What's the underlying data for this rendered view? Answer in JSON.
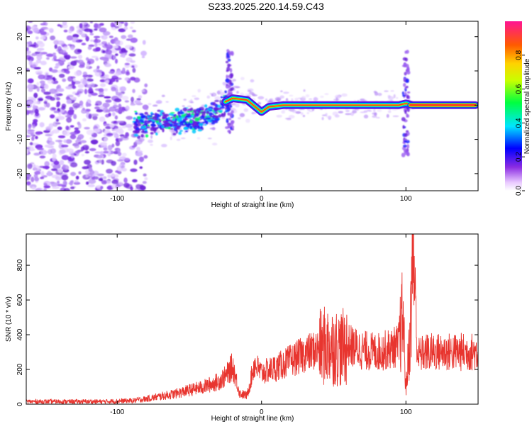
{
  "title": "S233.2025.220.14.59.C43",
  "chart_data": [
    {
      "type": "heatmap",
      "xlabel": "Height of straight line (km)",
      "ylabel": "Frequency (Hz)",
      "xlim": [
        -163,
        150
      ],
      "ylim": [
        -25,
        24.5
      ],
      "xticks": [
        -100,
        0,
        100
      ],
      "yticks": [
        -20,
        -10,
        0,
        10,
        20
      ],
      "colorbar": {
        "label": "Normalized spectral amplitude",
        "range": [
          0,
          1
        ],
        "ticks": [
          "0.0",
          "0.2",
          "0.4",
          "0.6",
          "0.8"
        ],
        "tick_values": [
          0.0,
          0.2,
          0.4,
          0.6,
          0.8
        ],
        "colormap": "rainbow"
      },
      "noise_region_x": [
        -163,
        -80
      ],
      "dispersion_line": [
        [
          -88,
          -5.5
        ],
        [
          -60,
          -5.0
        ],
        [
          -40,
          -3.5
        ],
        [
          -30,
          -2.0
        ],
        [
          -25,
          1.0
        ],
        [
          -20,
          2.0
        ],
        [
          -10,
          1.5
        ],
        [
          0,
          -2.0
        ],
        [
          5,
          -0.5
        ],
        [
          15,
          0.0
        ],
        [
          40,
          0.0
        ],
        [
          60,
          0.0
        ],
        [
          80,
          0.0
        ],
        [
          95,
          0.0
        ],
        [
          100,
          0.5
        ],
        [
          105,
          0.0
        ],
        [
          148,
          0.0
        ]
      ],
      "spikes": [
        {
          "x": -22,
          "f_range": [
            -8,
            16
          ]
        },
        {
          "x": 100,
          "f_range": [
            -15,
            16
          ]
        }
      ]
    },
    {
      "type": "line",
      "xlabel": "Height of straight line (km)",
      "ylabel": "SNR (10 * v/v)",
      "xlim": [
        -163,
        150
      ],
      "ylim": [
        0,
        980
      ],
      "xticks": [
        -100,
        0,
        100
      ],
      "yticks": [
        0,
        200,
        400,
        600,
        800
      ],
      "color": "#e8352f",
      "envelope": {
        "x": [
          -163,
          -140,
          -110,
          -90,
          -80,
          -60,
          -40,
          -30,
          -25,
          -20,
          -15,
          -10,
          -5,
          0,
          10,
          20,
          30,
          40,
          45,
          50,
          55,
          60,
          70,
          80,
          90,
          95,
          98,
          100,
          103,
          105,
          108,
          115,
          130,
          150
        ],
        "y": [
          15,
          15,
          15,
          20,
          30,
          60,
          100,
          130,
          160,
          220,
          60,
          50,
          230,
          180,
          210,
          250,
          290,
          320,
          340,
          330,
          320,
          340,
          310,
          300,
          320,
          340,
          520,
          90,
          400,
          950,
          280,
          300,
          300,
          300
        ]
      }
    }
  ]
}
